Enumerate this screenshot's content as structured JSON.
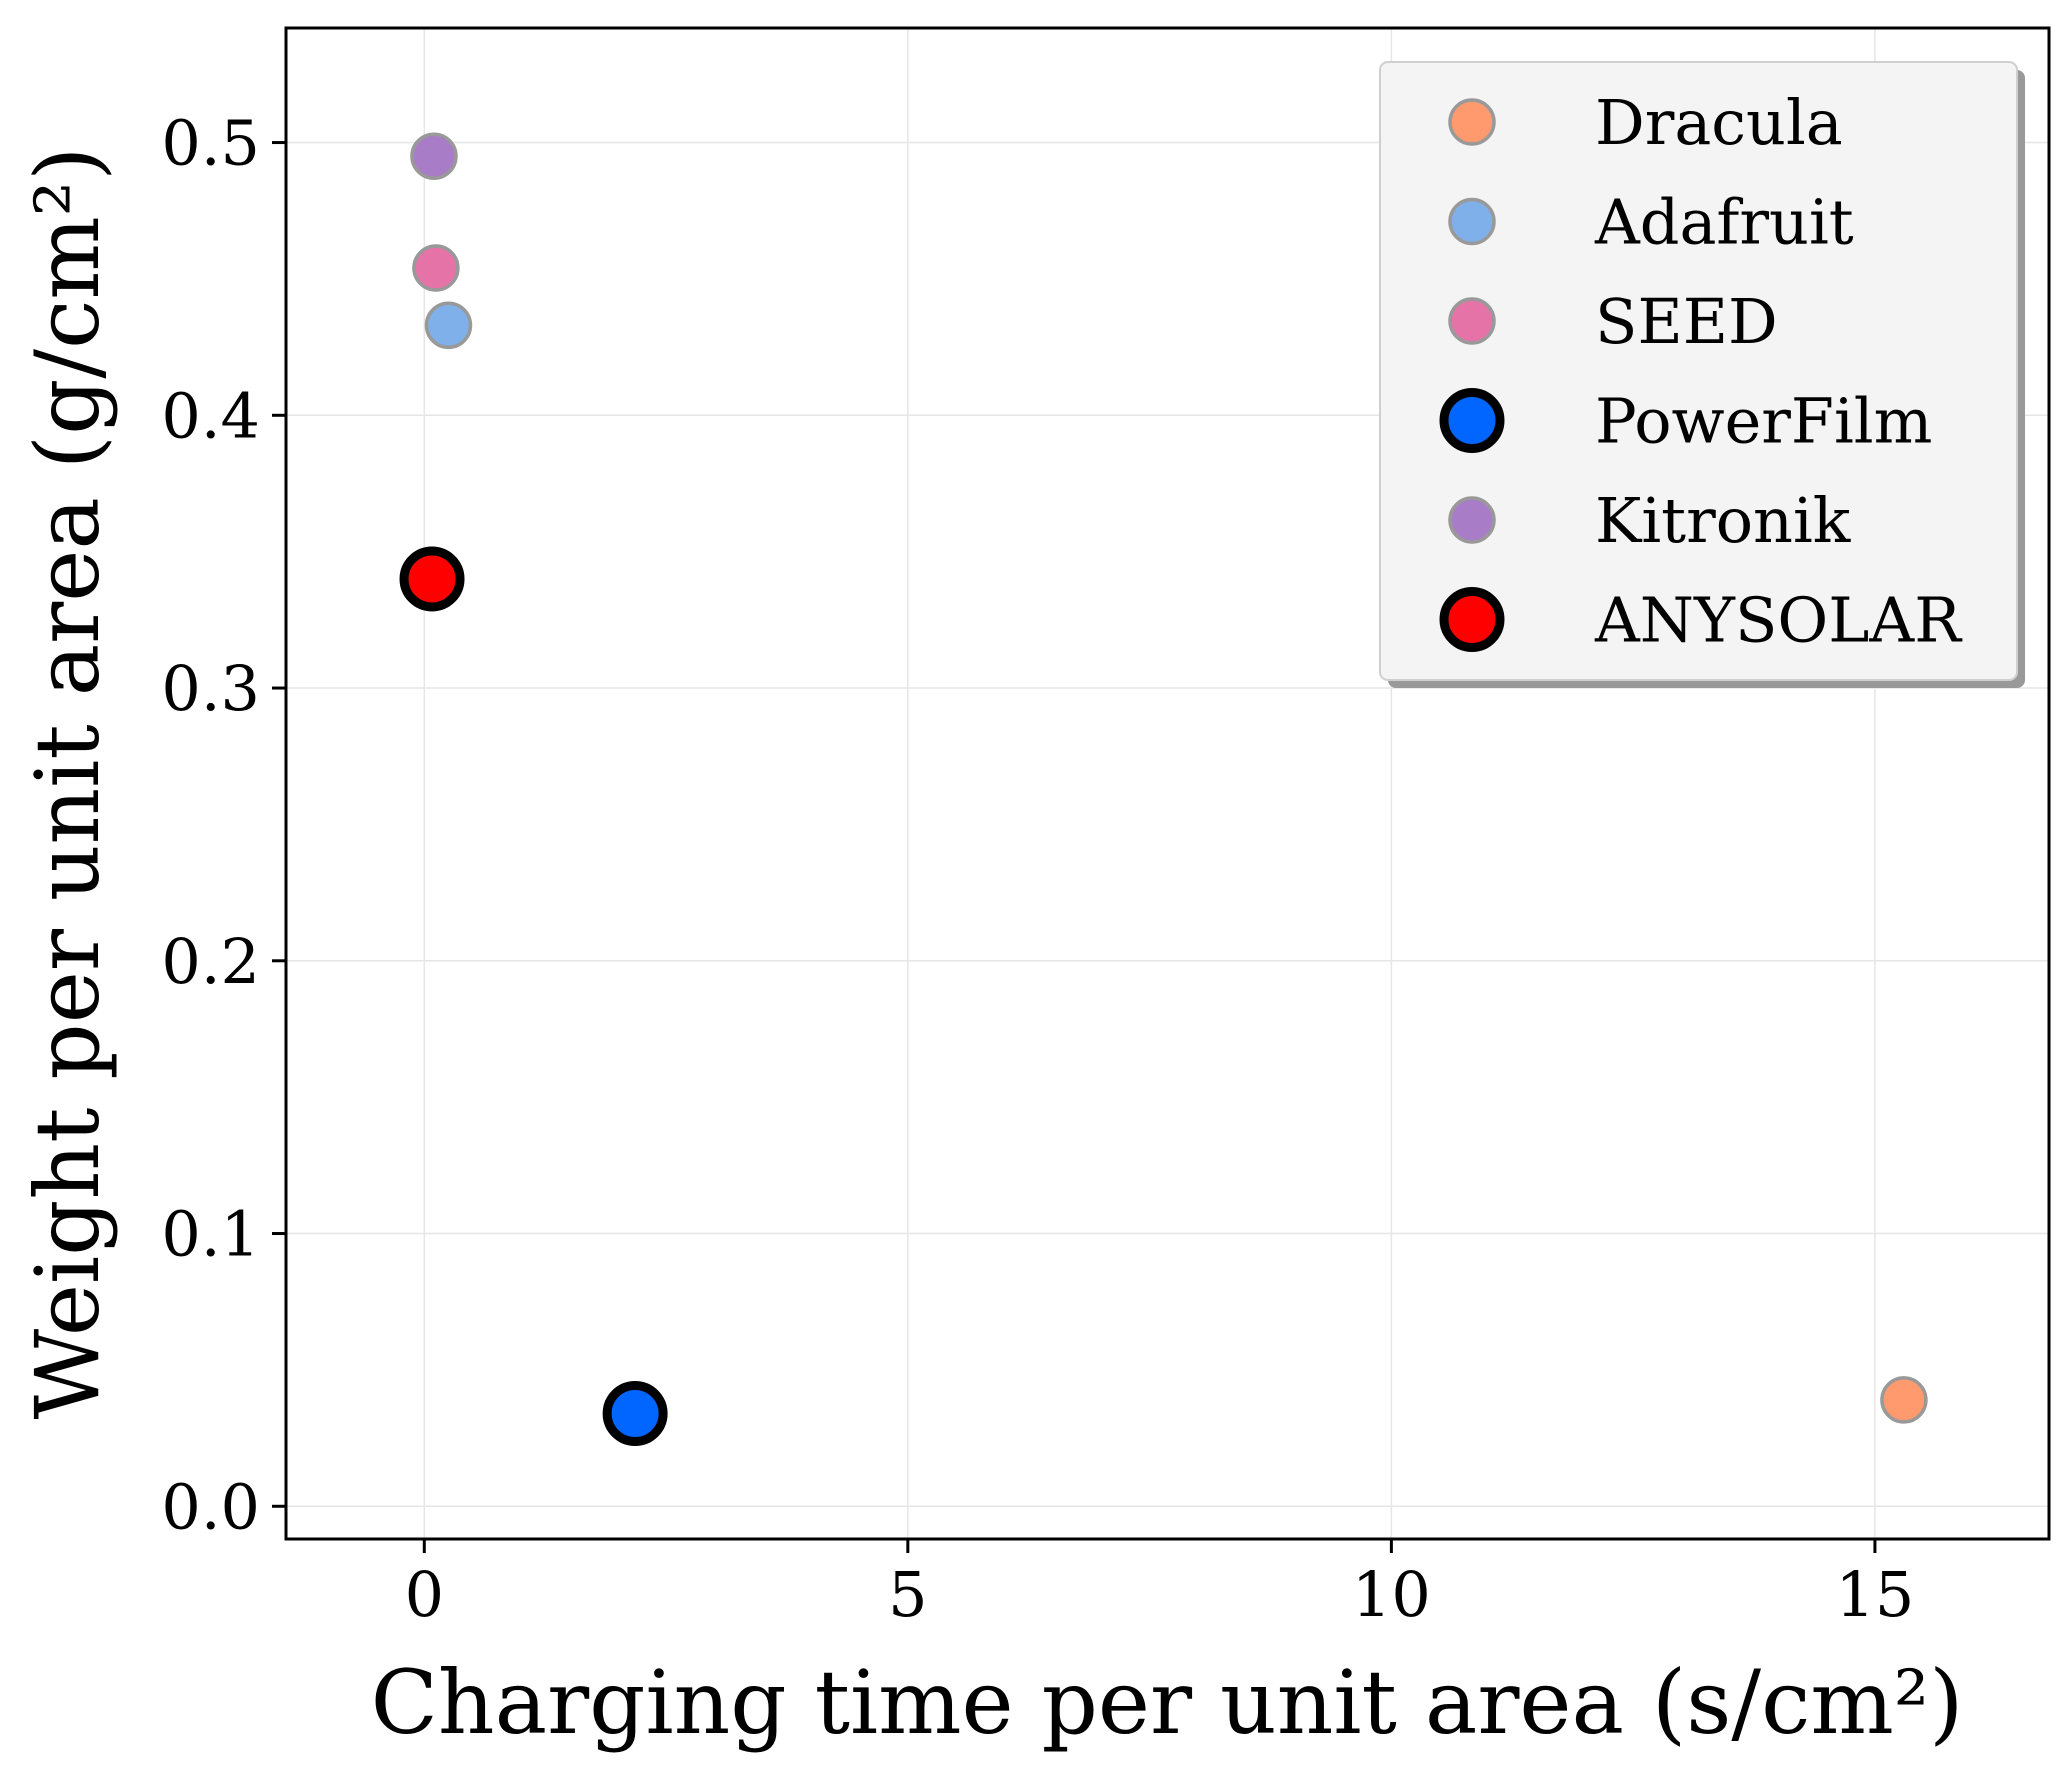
{
  "chart_data": {
    "type": "scatter",
    "title": "",
    "xlabel": "Charging time per unit area (s/cm²)",
    "ylabel": "Weight per unit area (g/cm²)",
    "xlim": [
      -1.43,
      16.8
    ],
    "ylim": [
      -0.012,
      0.542
    ],
    "xticks": [
      0,
      5,
      10,
      15
    ],
    "xtick_labels": [
      "0",
      "5",
      "10",
      "15"
    ],
    "yticks": [
      0.0,
      0.1,
      0.2,
      0.3,
      0.4,
      0.5
    ],
    "ytick_labels": [
      "0.0",
      "0.1",
      "0.2",
      "0.3",
      "0.4",
      "0.5"
    ],
    "grid": true,
    "legend_position": "top-right",
    "series": [
      {
        "name": "Dracula",
        "x": [
          15.3
        ],
        "y": [
          0.039
        ],
        "color": "#FF9A6E",
        "highlight": false
      },
      {
        "name": "Adafruit",
        "x": [
          0.25
        ],
        "y": [
          0.433
        ],
        "color": "#7FB0EA",
        "highlight": false
      },
      {
        "name": "SEED",
        "x": [
          0.12
        ],
        "y": [
          0.454
        ],
        "color": "#E673A8",
        "highlight": false
      },
      {
        "name": "PowerFilm",
        "x": [
          2.18
        ],
        "y": [
          0.034
        ],
        "color": "#0066FF",
        "highlight": true
      },
      {
        "name": "Kitronik",
        "x": [
          0.1
        ],
        "y": [
          0.495
        ],
        "color": "#A97CC8",
        "highlight": false
      },
      {
        "name": "ANYSOLAR",
        "x": [
          0.08
        ],
        "y": [
          0.34
        ],
        "color": "#FF0000",
        "highlight": true
      }
    ]
  }
}
